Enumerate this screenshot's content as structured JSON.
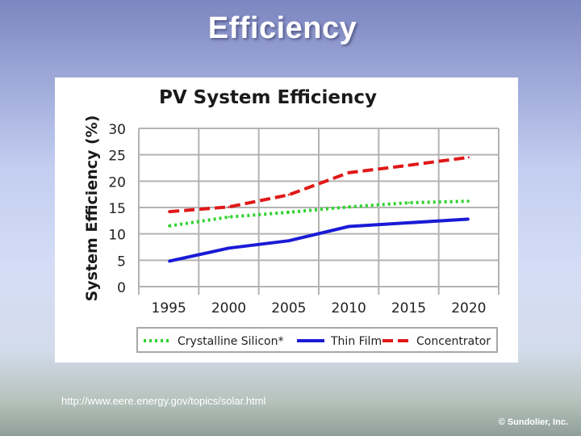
{
  "slide": {
    "title": "Efficiency",
    "source_url": "http://www.eere.energy.gov/topics/solar.html",
    "copyright": "© Sundolier, Inc."
  },
  "chart_data": {
    "type": "line",
    "title": "PV System Efficiency",
    "xlabel": "",
    "ylabel": "System Efficiency (%)",
    "x_ticks": [
      "1995",
      "2000",
      "2005",
      "2010",
      "2015",
      "2020"
    ],
    "y_ticks": [
      "30",
      "25",
      "20",
      "15",
      "10",
      "5",
      "0"
    ],
    "xlim": [
      1992.5,
      2022.5
    ],
    "ylim": [
      0,
      30
    ],
    "grid": true,
    "legend_position": "bottom",
    "series": [
      {
        "name": "Crystalline Silicon*",
        "color": "#2ed32e",
        "dash": "dotted",
        "x": [
          1995,
          2000,
          2005,
          2010,
          2015,
          2020
        ],
        "values": [
          11.5,
          13.2,
          14.1,
          15.1,
          15.9,
          16.2
        ]
      },
      {
        "name": "Thin Film",
        "color": "#1a1ad6",
        "dash": "solid",
        "x": [
          1995,
          2000,
          2005,
          2010,
          2015,
          2020
        ],
        "values": [
          4.8,
          7.3,
          8.7,
          11.4,
          12.1,
          12.8
        ]
      },
      {
        "name": "Concentrator",
        "color": "#e01818",
        "dash": "dashed",
        "x": [
          1995,
          2000,
          2005,
          2010,
          2015,
          2020
        ],
        "values": [
          14.2,
          15.1,
          17.4,
          21.6,
          23.0,
          24.5
        ]
      }
    ]
  }
}
